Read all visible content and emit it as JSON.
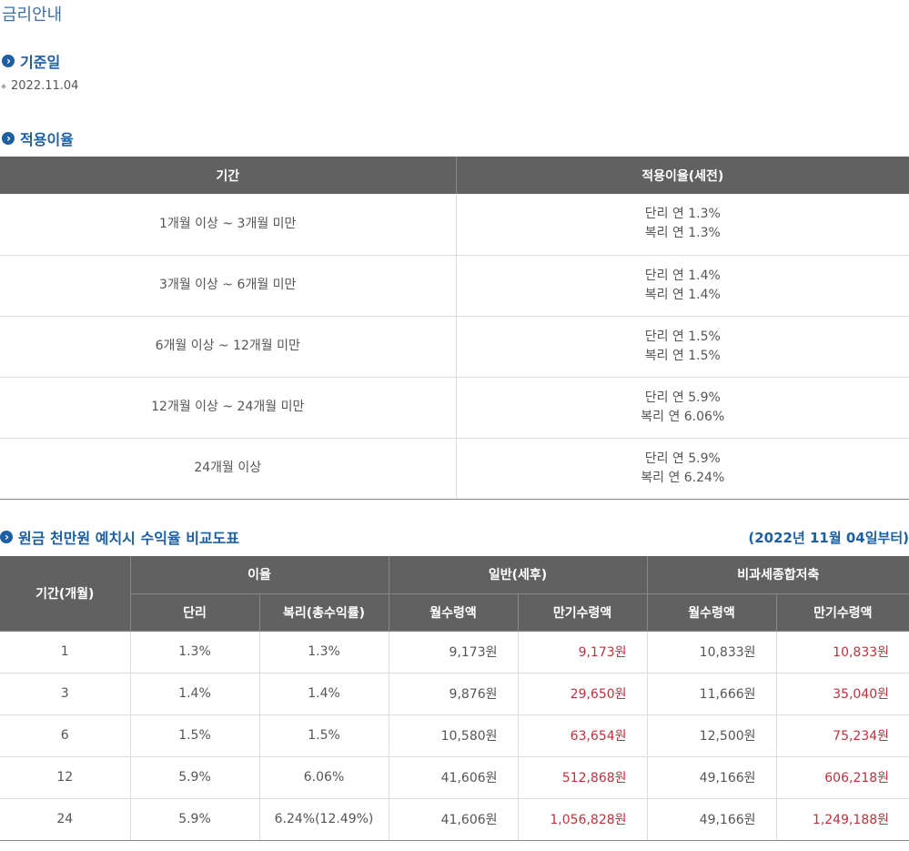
{
  "page": {
    "title": "금리안내"
  },
  "base_date": {
    "heading": "기준일",
    "value": "2022.11.04"
  },
  "rates": {
    "heading": "적용이율",
    "columns": [
      "기간",
      "적용이율(세전)"
    ],
    "rows": [
      {
        "period": "1개월 이상 ~ 3개월 미만",
        "simple": "단리 연 1.3%",
        "compound": "복리 연 1.3%"
      },
      {
        "period": "3개월 이상 ~ 6개월 미만",
        "simple": "단리 연 1.4%",
        "compound": "복리 연 1.4%"
      },
      {
        "period": "6개월 이상 ~ 12개월 미만",
        "simple": "단리 연 1.5%",
        "compound": "복리 연 1.5%"
      },
      {
        "period": "12개월 이상 ~ 24개월 미만",
        "simple": "단리 연 5.9%",
        "compound": "복리 연 6.06%"
      },
      {
        "period": "24개월 이상",
        "simple": "단리 연 5.9%",
        "compound": "복리 연 6.24%"
      }
    ]
  },
  "comparison": {
    "heading": "원금 천만원 예치시 수익율 비교도표",
    "from_date": "(2022년 11월 04일부터)",
    "headers": {
      "period": "기간(개월)",
      "interest": "이율",
      "general": "일반(세후)",
      "taxfree": "비과세종합저축",
      "simple": "단리",
      "compound": "복리(총수익률)",
      "monthly": "월수령액",
      "maturity": "만기수령액"
    },
    "rows": [
      {
        "period": "1",
        "simple": "1.3%",
        "compound": "1.3%",
        "gen_monthly": "9,173원",
        "gen_maturity": "9,173원",
        "tf_monthly": "10,833원",
        "tf_maturity": "10,833원"
      },
      {
        "period": "3",
        "simple": "1.4%",
        "compound": "1.4%",
        "gen_monthly": "9,876원",
        "gen_maturity": "29,650원",
        "tf_monthly": "11,666원",
        "tf_maturity": "35,040원"
      },
      {
        "period": "6",
        "simple": "1.5%",
        "compound": "1.5%",
        "gen_monthly": "10,580원",
        "gen_maturity": "63,654원",
        "tf_monthly": "12,500원",
        "tf_maturity": "75,234원"
      },
      {
        "period": "12",
        "simple": "5.9%",
        "compound": "6.06%",
        "gen_monthly": "41,606원",
        "gen_maturity": "512,868원",
        "tf_monthly": "49,166원",
        "tf_maturity": "606,218원"
      },
      {
        "period": "24",
        "simple": "5.9%",
        "compound": "6.24%(12.49%)",
        "gen_monthly": "41,606원",
        "gen_maturity": "1,056,828원",
        "tf_monthly": "49,166원",
        "tf_maturity": "1,249,188원"
      }
    ]
  },
  "colors": {
    "accent": "#1d5fa3",
    "header_bg": "#616161",
    "maturity_text": "#c0313d"
  }
}
